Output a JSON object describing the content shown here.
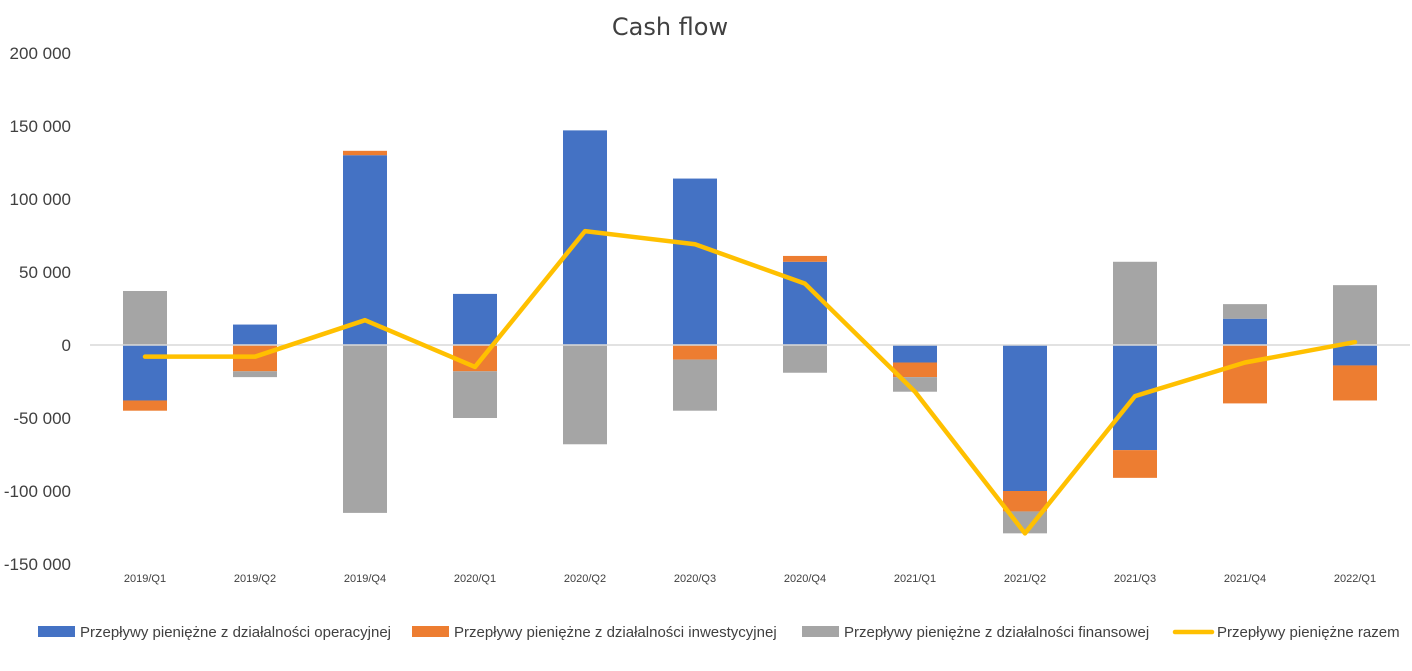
{
  "chart_data": {
    "type": "bar",
    "stacked": true,
    "title": "Cash flow",
    "categories": [
      "2019/Q1",
      "2019/Q2",
      "2019/Q4",
      "2020/Q1",
      "2020/Q2",
      "2020/Q3",
      "2020/Q4",
      "2021/Q1",
      "2021/Q2",
      "2021/Q3",
      "2021/Q4",
      "2022/Q1"
    ],
    "ylim": [
      -150000,
      200000
    ],
    "yticks": [
      200000,
      150000,
      100000,
      50000,
      0,
      -50000,
      -100000,
      -150000
    ],
    "ytick_labels": [
      "200 000",
      "150 000",
      "100 000",
      "50 000",
      "0",
      "-50 000",
      "-100 000",
      "-150 000"
    ],
    "grid": false,
    "legend_position": "bottom",
    "series": [
      {
        "name": "Przepływy pieniężne z działalności operacyjnej",
        "kind": "bar",
        "color": "#4472C4",
        "values": [
          -38000,
          14000,
          130000,
          35000,
          147000,
          114000,
          57000,
          -12000,
          -100000,
          -72000,
          18000,
          -14000
        ]
      },
      {
        "name": "Przepływy pieniężne z działalności inwestycyjnej",
        "kind": "bar",
        "color": "#ED7D31",
        "values": [
          -7000,
          -18000,
          3000,
          -18000,
          0,
          -10000,
          4000,
          -10000,
          -14000,
          -19000,
          -40000,
          -24000
        ]
      },
      {
        "name": "Przepływy pieniężne z działalności finansowej",
        "kind": "bar",
        "color": "#A5A5A5",
        "values": [
          37000,
          -4000,
          -115000,
          -32000,
          -68000,
          -35000,
          -19000,
          -10000,
          -15000,
          57000,
          10000,
          41000
        ]
      },
      {
        "name": "Przepływy pieniężne razem",
        "kind": "line",
        "color": "#FFC000",
        "values": [
          -8000,
          -8000,
          17000,
          -15000,
          78000,
          69000,
          42000,
          -32000,
          -129000,
          -35000,
          -12000,
          2000
        ]
      }
    ]
  }
}
